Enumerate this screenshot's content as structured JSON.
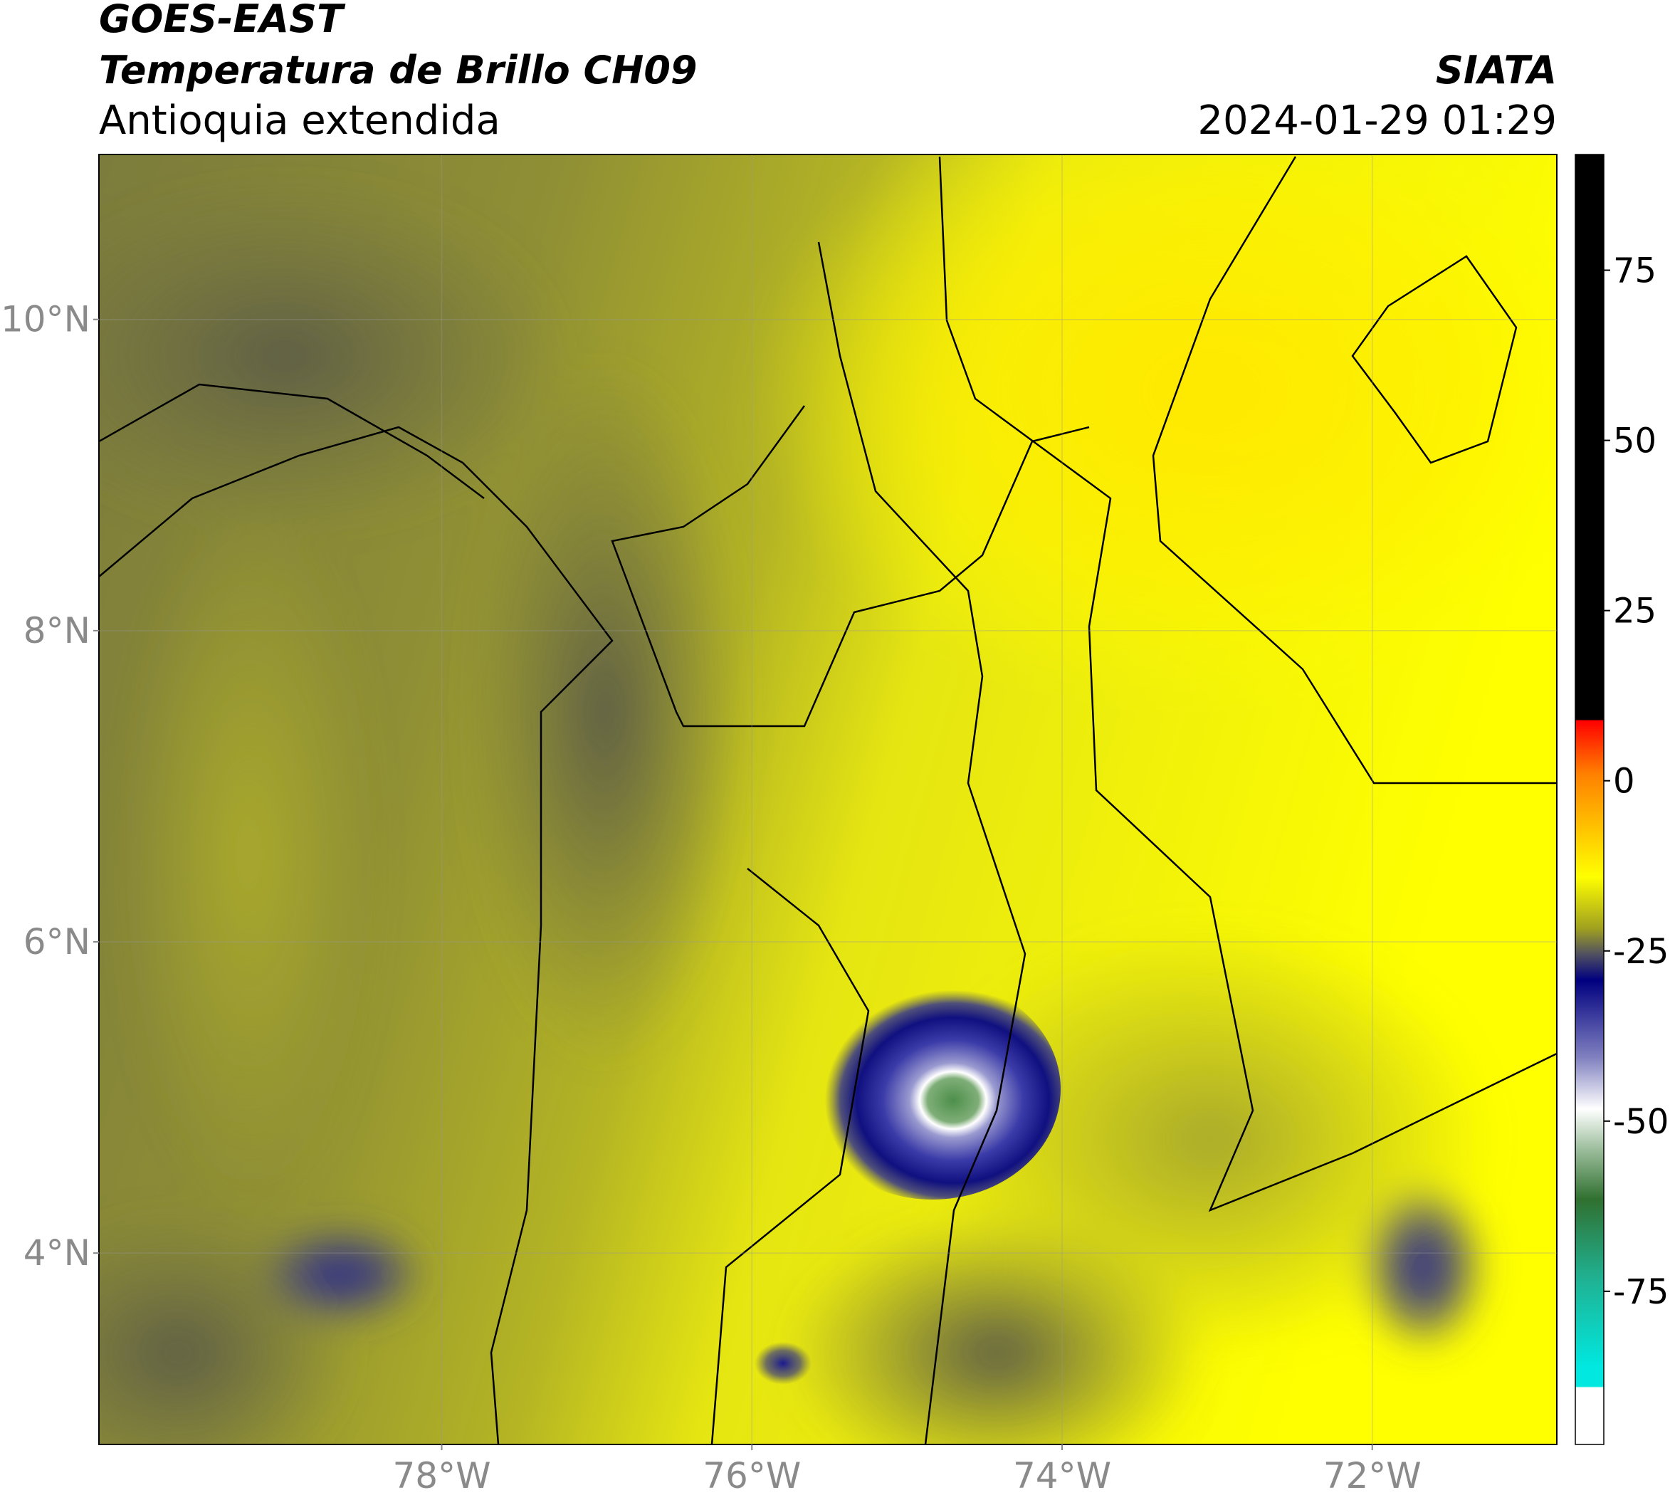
{
  "header": {
    "title": "GOES-EAST",
    "subtitle": "Temperatura de Brillo CH09",
    "region": "Antioquia extendida",
    "agency": "SIATA",
    "datetime": "2024-01-29 01:29"
  },
  "map": {
    "lonlim": [
      -80.21,
      -70.81
    ],
    "latlim": [
      2.77,
      11.06
    ],
    "lonticks": [
      {
        "value": -78,
        "label": "78°W"
      },
      {
        "value": -76,
        "label": "76°W"
      },
      {
        "value": -74,
        "label": "74°W"
      },
      {
        "value": -72,
        "label": "72°W"
      }
    ],
    "latticks": [
      {
        "value": 10,
        "label": "10°N"
      },
      {
        "value": 8,
        "label": "8°N"
      },
      {
        "value": 6,
        "label": "6°N"
      },
      {
        "value": 4,
        "label": "4°N"
      }
    ]
  },
  "colorbar": {
    "lim": [
      -97.5,
      92
    ],
    "ticks": [
      75,
      50,
      25,
      0,
      -25,
      -50,
      -75
    ]
  }
}
